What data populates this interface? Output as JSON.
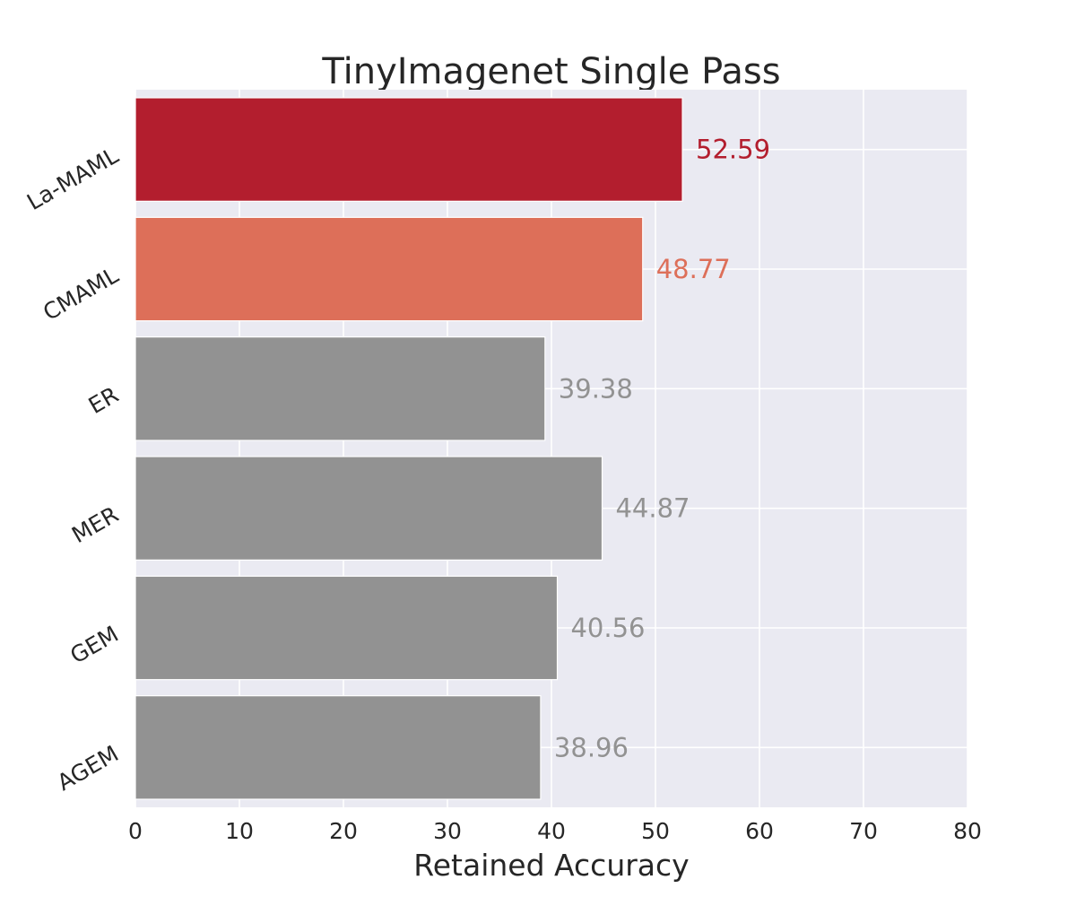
{
  "chart_data": {
    "type": "bar",
    "orientation": "horizontal",
    "title": "TinyImagenet Single Pass",
    "xlabel": "Retained Accuracy",
    "ylabel": "",
    "xlim": [
      0,
      80
    ],
    "xticks": [
      "0",
      "10",
      "20",
      "30",
      "40",
      "50",
      "60",
      "70",
      "80"
    ],
    "grid": true,
    "categories": [
      "La-MAML",
      "CMAML",
      "ER",
      "MER",
      "GEM",
      "AGEM"
    ],
    "values": [
      52.59,
      48.77,
      39.38,
      44.87,
      40.56,
      38.96
    ],
    "value_labels": [
      "52.59",
      "48.77",
      "39.38",
      "44.87",
      "40.56",
      "38.96"
    ],
    "bar_colors": [
      "#b31e2e",
      "#dd6f59",
      "#929292",
      "#929292",
      "#929292",
      "#929292"
    ],
    "plot_background": "#eaeaf2",
    "grid_color": "#ffffff"
  }
}
